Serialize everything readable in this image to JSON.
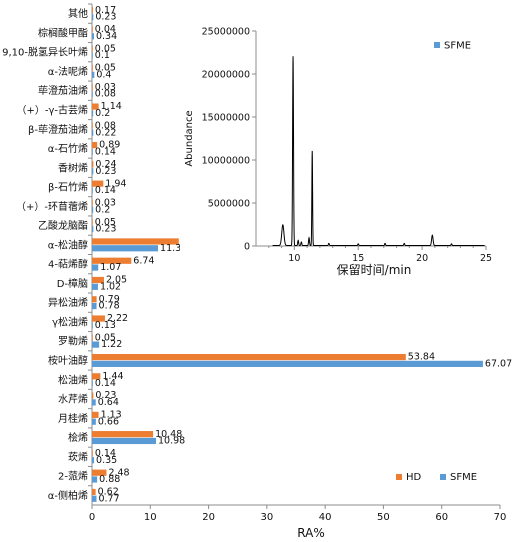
{
  "chart_data": [
    {
      "type": "bar",
      "orientation": "horizontal",
      "categories": [
        "其他",
        "棕榈酸甲酯",
        "9,10-脱氢异长叶烯",
        "α-法呢烯",
        "荜澄茄油烯",
        "（+）-γ-古芸烯",
        "β-荜澄茄油烯",
        "α-石竹烯",
        "香树烯",
        "β-石竹烯",
        "（+）-环苜蓿烯",
        "乙酸龙脑酯",
        "α-松油醇",
        "4-萜烯醇",
        "D-樟脑",
        "异松油烯",
        "γ松油烯",
        "罗勒烯",
        "桉叶油醇",
        "松油烯",
        "水芹烯",
        "月桂烯",
        "桧烯",
        "莰烯",
        "2-蒎烯",
        "α-侧柏烯"
      ],
      "series": [
        {
          "name": "HD",
          "color": "#ED7D31",
          "values": [
            0.17,
            0.04,
            0.05,
            0.05,
            0.03,
            1.14,
            0.08,
            0.89,
            0.24,
            1.94,
            0.03,
            0.05,
            14.89,
            6.74,
            2.05,
            0.79,
            2.22,
            0.05,
            53.84,
            1.44,
            0.23,
            1.13,
            10.48,
            0.14,
            2.48,
            0.62
          ]
        },
        {
          "name": "SFME",
          "color": "#5B9BD5",
          "values": [
            0.23,
            0.34,
            0.1,
            0.4,
            0.08,
            0.2,
            0.22,
            0.14,
            0.23,
            0.14,
            0.2,
            0.23,
            11.33,
            1.07,
            1.02,
            0.78,
            0.13,
            1.22,
            67.07,
            0.14,
            0.64,
            0.66,
            10.98,
            0.35,
            0.88,
            0.77
          ]
        }
      ],
      "value_labels": {
        "HD": [
          "0.17",
          "0.04",
          "0.05",
          "0.05",
          "0.03",
          "1.14",
          "0.08",
          "0.89",
          "0.24",
          "1.94",
          "0.03",
          "0.05",
          "14.89",
          "6.74",
          "2.05",
          "0.79",
          "2.22",
          "0.05",
          "53.84",
          "1.44",
          "0.23",
          "1.13",
          "10.48",
          "0.14",
          "2.48",
          "0.62"
        ],
        "SFME": [
          "0.23",
          "0.34",
          "0.1",
          "0.4",
          "0.08",
          "0.2",
          "0.22",
          "0.14",
          "0.23",
          "0.14",
          "0.2",
          "0.23",
          "11.33",
          "1.07",
          "1.02",
          "0.78",
          "0.13",
          "1.22",
          "67.07",
          "0.14",
          "0.64",
          "0.66",
          "10.98",
          "0.35",
          "0.88",
          "0.77"
        ]
      },
      "xlabel": "RA%",
      "xlim": [
        0,
        70
      ],
      "xticks": [
        "0",
        "10",
        "20",
        "30",
        "40",
        "50",
        "60",
        "70"
      ],
      "legend": {
        "position": "bottom-right",
        "entries": [
          "HD",
          "SFME"
        ]
      },
      "grid": false
    },
    {
      "type": "line",
      "title": "",
      "xlabel": "保留时间/min",
      "ylabel": "Abundance",
      "xlim": [
        7,
        25
      ],
      "ylim": [
        0,
        25000000
      ],
      "xticks": [
        "10",
        "15",
        "20",
        "25"
      ],
      "yticks": [
        "0",
        "5000000",
        "10000000",
        "15000000",
        "20000000",
        "25000000"
      ],
      "legend": {
        "position": "top-right",
        "entries": [
          "SFME"
        ]
      },
      "grid": false,
      "series": [
        {
          "name": "SFME",
          "color": "#000000",
          "peaks": [
            {
              "x": 9.1,
              "y": 2400000,
              "w": 0.12
            },
            {
              "x": 9.9,
              "y": 22000000,
              "w": 0.05
            },
            {
              "x": 10.3,
              "y": 600000,
              "w": 0.05
            },
            {
              "x": 10.55,
              "y": 400000,
              "w": 0.05
            },
            {
              "x": 11.15,
              "y": 900000,
              "w": 0.05
            },
            {
              "x": 11.4,
              "y": 11000000,
              "w": 0.04
            },
            {
              "x": 12.7,
              "y": 250000,
              "w": 0.05
            },
            {
              "x": 15.0,
              "y": 200000,
              "w": 0.05
            },
            {
              "x": 17.1,
              "y": 250000,
              "w": 0.05
            },
            {
              "x": 18.6,
              "y": 250000,
              "w": 0.05
            },
            {
              "x": 20.8,
              "y": 1200000,
              "w": 0.08
            },
            {
              "x": 22.3,
              "y": 200000,
              "w": 0.05
            }
          ]
        }
      ]
    }
  ]
}
